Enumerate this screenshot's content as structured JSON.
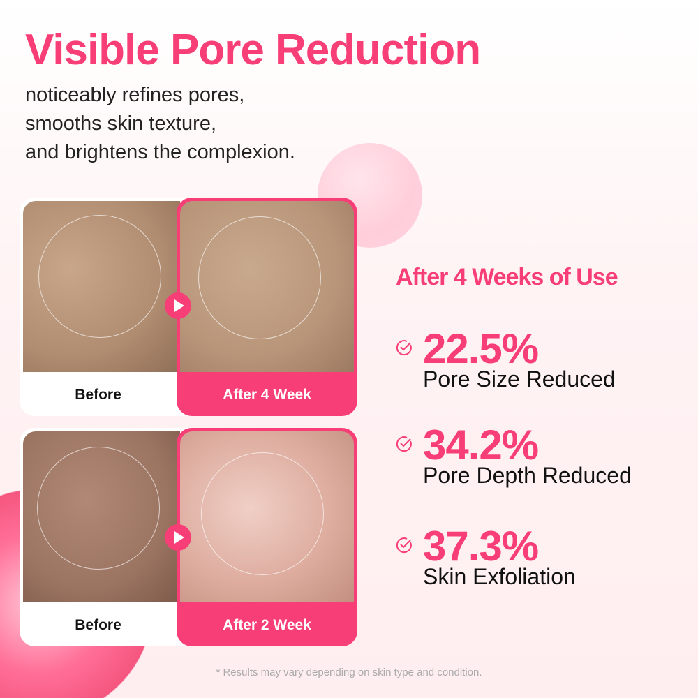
{
  "title": "Visible Pore Reduction",
  "subtitle": [
    "noticeably refines pores,",
    "smooths skin texture,",
    "and brightens the complexion."
  ],
  "comparisons": [
    {
      "before_label": "Before",
      "after_label": "After 4 Week"
    },
    {
      "before_label": "Before",
      "after_label": "After 2 Week"
    }
  ],
  "results": {
    "heading": "After 4 Weeks of Use",
    "items": [
      {
        "value": "22.5%",
        "label": "Pore Size Reduced"
      },
      {
        "value": "34.2%",
        "label": "Pore Depth Reduced"
      },
      {
        "value": "37.3%",
        "label": "Skin Exfoliation"
      }
    ]
  },
  "footnote": "* Results may vary depending on skin type and condition.",
  "colors": {
    "accent": "#f73e76"
  }
}
